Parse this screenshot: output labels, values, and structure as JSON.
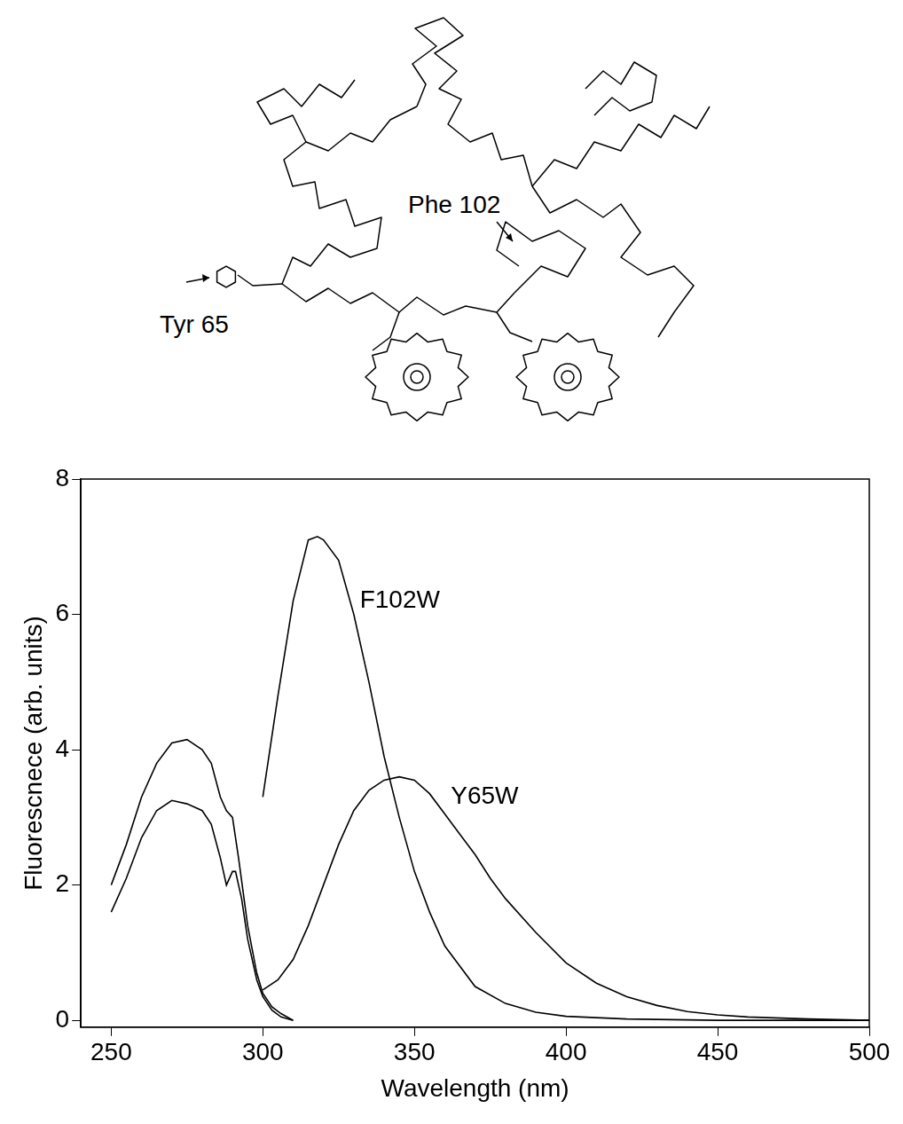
{
  "diagram": {
    "labels": [
      {
        "text": "Tyr 65"
      },
      {
        "text": "Phe 102"
      }
    ]
  },
  "chart_data": {
    "type": "line",
    "x_label": "Wavelength (nm)",
    "y_label": "Fluorescnece (arb. units)",
    "xlim": [
      240,
      500
    ],
    "xticks": [
      250,
      300,
      350,
      400,
      450,
      500
    ],
    "ylim": [
      -0.1,
      8
    ],
    "yticks": [
      0,
      2,
      4,
      6,
      8
    ],
    "grid": false,
    "color": "#000000",
    "series": [
      {
        "x": [
          250,
          255,
          260,
          265,
          270,
          275,
          280,
          283,
          286,
          288,
          290,
          292,
          295,
          298,
          300,
          303,
          306,
          310
        ],
        "values": [
          2.0,
          2.6,
          3.3,
          3.8,
          4.1,
          4.15,
          4.0,
          3.8,
          3.3,
          3.1,
          3.0,
          2.4,
          1.4,
          0.7,
          0.4,
          0.2,
          0.1,
          0.0
        ]
      },
      {
        "x": [
          250,
          255,
          260,
          265,
          270,
          275,
          280,
          283,
          286,
          288,
          290,
          291,
          293,
          295,
          298,
          300,
          303,
          306,
          310
        ],
        "values": [
          1.6,
          2.1,
          2.7,
          3.1,
          3.25,
          3.2,
          3.1,
          2.9,
          2.4,
          2.0,
          2.2,
          2.2,
          1.8,
          1.2,
          0.6,
          0.35,
          0.15,
          0.05,
          0.0
        ]
      },
      {
        "x": [
          300,
          305,
          310,
          315,
          318,
          320,
          325,
          330,
          335,
          340,
          345,
          350,
          355,
          360,
          370,
          380,
          390,
          400,
          420,
          450,
          500
        ],
        "values": [
          3.3,
          4.8,
          6.2,
          7.1,
          7.15,
          7.1,
          6.8,
          6.0,
          5.0,
          3.9,
          3.0,
          2.2,
          1.6,
          1.1,
          0.5,
          0.25,
          0.12,
          0.06,
          0.02,
          0.0,
          0.0
        ]
      },
      {
        "x": [
          300,
          305,
          310,
          315,
          320,
          325,
          330,
          335,
          340,
          345,
          350,
          355,
          360,
          365,
          370,
          375,
          380,
          390,
          400,
          410,
          420,
          430,
          440,
          450,
          460,
          480,
          500
        ],
        "values": [
          0.45,
          0.6,
          0.9,
          1.4,
          2.0,
          2.6,
          3.1,
          3.4,
          3.55,
          3.6,
          3.55,
          3.35,
          3.05,
          2.75,
          2.45,
          2.1,
          1.8,
          1.3,
          0.85,
          0.55,
          0.35,
          0.22,
          0.13,
          0.08,
          0.05,
          0.02,
          0.0
        ]
      }
    ],
    "annotations": [
      {
        "text": "F102W",
        "x": 332,
        "y": 6.2
      },
      {
        "text": "Y65W",
        "x": 362,
        "y": 3.3
      }
    ]
  }
}
